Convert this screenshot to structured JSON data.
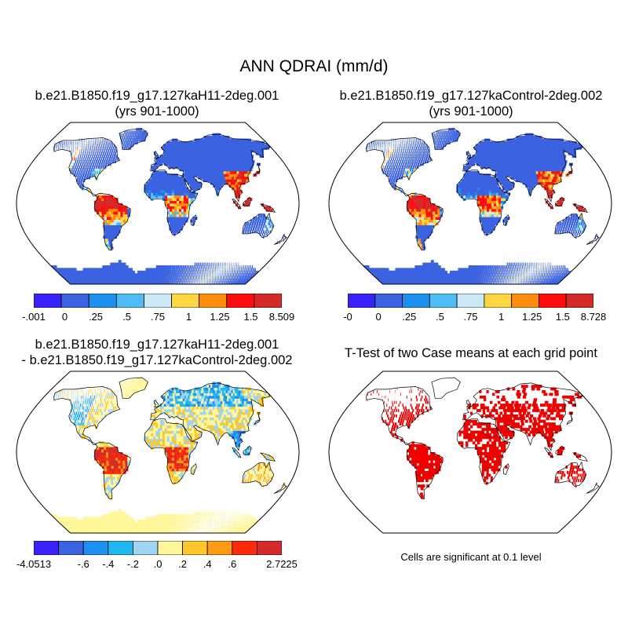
{
  "main_title": "ANN QDRAI (mm/d)",
  "panels": {
    "p1": {
      "title_line1": "b.e21.B1850.f19_g17.127kaH11-2deg.001",
      "title_line2": "(yrs 901-1000)"
    },
    "p2": {
      "title_line1": "b.e21.B1850.f19_g17.127kaControl-2deg.002",
      "title_line2": "(yrs 901-1000)"
    },
    "p3": {
      "title_line1": "b.e21.B1850.f19_g17.127kaH11-2deg.001",
      "title_line2": "- b.e21.B1850.f19_g17.127kaControl-2deg.002"
    },
    "p4": {
      "title_line1": "T-Test of two Case means at each grid point"
    }
  },
  "significance_note": "Cells are significant at 0.1 level",
  "chart_data": [
    {
      "type": "heatmap",
      "title": "b.e21.B1850.f19_g17.127kaH11-2deg.001 (yrs 901-1000)",
      "variable": "ANN QDRAI (mm/d)",
      "projection": "Robinson",
      "colorbar": {
        "labels": [
          "-.001",
          "0",
          ".25",
          ".5",
          ".75",
          "1",
          "1.25",
          "1.5",
          "8.509"
        ],
        "colors": [
          "#3a22ff",
          "#3b62e0",
          "#1d8ff0",
          "#4fbdf5",
          "#cde9f7",
          "#ffd540",
          "#ff8c0a",
          "#ff0d0d",
          "#d42a2a"
        ]
      }
    },
    {
      "type": "heatmap",
      "title": "b.e21.B1850.f19_g17.127kaControl-2deg.002 (yrs 901-1000)",
      "variable": "ANN QDRAI (mm/d)",
      "projection": "Robinson",
      "colorbar": {
        "labels": [
          "-0",
          "0",
          ".25",
          ".5",
          ".75",
          "1",
          "1.25",
          "1.5",
          "8.728"
        ],
        "colors": [
          "#3a22ff",
          "#3b62e0",
          "#1d8ff0",
          "#4fbdf5",
          "#cde9f7",
          "#ffd540",
          "#ff8c0a",
          "#ff0d0d",
          "#d42a2a"
        ]
      }
    },
    {
      "type": "heatmap",
      "title": "b.e21.B1850.f19_g17.127kaH11-2deg.001 - b.e21.B1850.f19_g17.127kaControl-2deg.002",
      "variable": "difference (mm/d)",
      "projection": "Robinson",
      "colorbar": {
        "labels": [
          "-4.0513",
          "",
          "-.6",
          "-.4",
          "-.2",
          ".0",
          ".2",
          ".4",
          ".6",
          "",
          "2.7225"
        ],
        "colors": [
          "#3a22ff",
          "#3b62e0",
          "#1d8ff0",
          "#1fb8f0",
          "#9fd4f2",
          "#fff79a",
          "#ffc72a",
          "#ff9a14",
          "#ff2a0a",
          "#d42a2a"
        ]
      }
    },
    {
      "type": "heatmap",
      "title": "T-Test of two Case means at each grid point",
      "variable": "significance mask",
      "projection": "Robinson",
      "mask_color": "#ee0000",
      "note": "Cells are significant at 0.1 level"
    }
  ]
}
